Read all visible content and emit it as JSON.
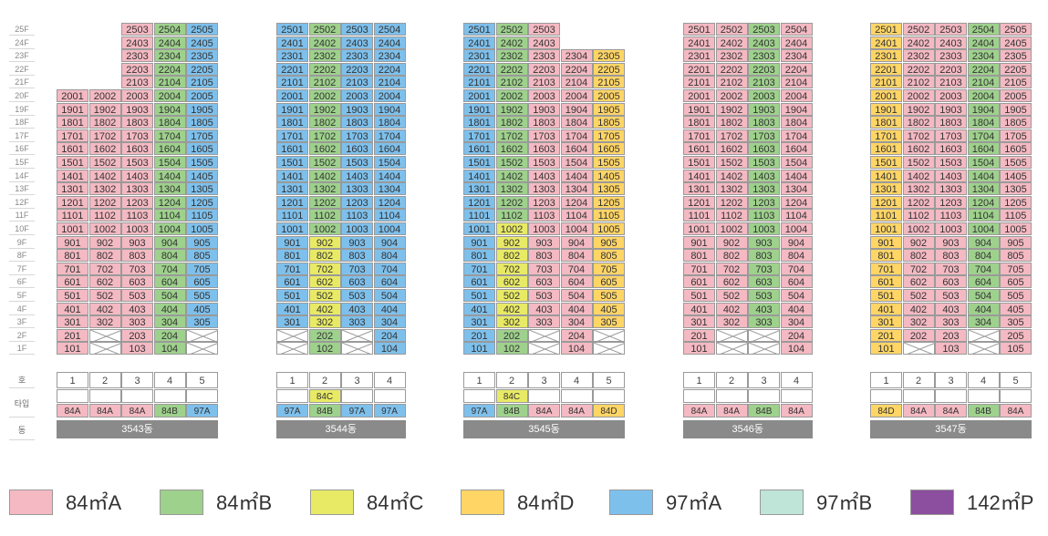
{
  "colors": {
    "84A": "#f4b9c2",
    "84B": "#9ed18c",
    "84C": "#e8ea66",
    "84D": "#ffd566",
    "97A": "#7ec0ec",
    "97B": "#bfe5d8",
    "142P": "#8c4e9e",
    "none": "#ffffff"
  },
  "side_labels": {
    "floors": [
      "25F",
      "24F",
      "23F",
      "22F",
      "21F",
      "20F",
      "19F",
      "18F",
      "17F",
      "16F",
      "15F",
      "14F",
      "13F",
      "12F",
      "11F",
      "10F",
      "9F",
      "8F",
      "7F",
      "6F",
      "5F",
      "4F",
      "3F",
      "2F",
      "1F"
    ],
    "ho": "호",
    "type": "타입",
    "dong": "동"
  },
  "buildings": [
    {
      "name": "3543동",
      "lines": [
        "1",
        "2",
        "3",
        "4",
        "5"
      ],
      "type_extra": [
        "",
        "",
        "",
        "",
        ""
      ],
      "types": [
        "84A",
        "84A",
        "84A",
        "84B",
        "97A"
      ],
      "line_types": [
        "84A",
        "84A",
        "84A",
        "84B",
        "97A"
      ],
      "top_floor": [
        20,
        20,
        25,
        25,
        25
      ],
      "missing": [
        [],
        [
          1,
          2
        ],
        [],
        [],
        [
          1,
          2
        ]
      ],
      "overrides": {}
    },
    {
      "name": "3544동",
      "lines": [
        "1",
        "2",
        "3",
        "4"
      ],
      "type_extra": [
        "",
        "84C",
        "",
        ""
      ],
      "types": [
        "97A",
        "84B",
        "97A",
        "97A"
      ],
      "line_types": [
        "97A",
        "84B",
        "97A",
        "97A"
      ],
      "top_floor": [
        25,
        25,
        25,
        25
      ],
      "missing": [
        [
          1,
          2
        ],
        [],
        [
          1,
          2
        ],
        []
      ],
      "overrides": {
        "1": {
          "3": "84C",
          "4": "84C",
          "5": "84C",
          "6": "84C",
          "7": "84C",
          "8": "84C",
          "9": "84C"
        }
      }
    },
    {
      "name": "3545동",
      "lines": [
        "1",
        "2",
        "3",
        "4",
        "5"
      ],
      "type_extra": [
        "",
        "84C",
        "",
        "",
        ""
      ],
      "types": [
        "97A",
        "84B",
        "84A",
        "84A",
        "84D"
      ],
      "line_types": [
        "97A",
        "84B",
        "84A",
        "84A",
        "84D"
      ],
      "top_floor": [
        25,
        25,
        25,
        23,
        23
      ],
      "missing": [
        [],
        [],
        [
          1,
          2
        ],
        [],
        [
          1,
          2
        ]
      ],
      "overrides": {
        "1": {
          "3": "84C",
          "4": "84C",
          "5": "84C",
          "6": "84C",
          "7": "84C",
          "8": "84C",
          "9": "84C",
          "10": "84C"
        }
      }
    },
    {
      "name": "3546동",
      "lines": [
        "1",
        "2",
        "3",
        "4"
      ],
      "type_extra": [
        "",
        "",
        "",
        ""
      ],
      "types": [
        "84A",
        "84A",
        "84B",
        "84A"
      ],
      "line_types": [
        "84A",
        "84A",
        "84B",
        "84A"
      ],
      "top_floor": [
        25,
        25,
        25,
        25
      ],
      "missing": [
        [],
        [
          1,
          2
        ],
        [
          1,
          2
        ],
        []
      ],
      "overrides": {}
    },
    {
      "name": "3547동",
      "lines": [
        "1",
        "2",
        "3",
        "4",
        "5"
      ],
      "type_extra": [
        "",
        "",
        "",
        "",
        ""
      ],
      "types": [
        "84D",
        "84A",
        "84A",
        "84B",
        "84A"
      ],
      "line_types": [
        "84D",
        "84A",
        "84A",
        "84B",
        "84A"
      ],
      "top_floor": [
        25,
        25,
        25,
        25,
        25
      ],
      "missing": [
        [],
        [
          1
        ],
        [],
        [
          1,
          2
        ],
        []
      ],
      "overrides": {}
    }
  ],
  "legend": [
    {
      "label": "84㎡A",
      "key": "84A"
    },
    {
      "label": "84㎡B",
      "key": "84B"
    },
    {
      "label": "84㎡C",
      "key": "84C"
    },
    {
      "label": "84㎡D",
      "key": "84D"
    },
    {
      "label": "97㎡A",
      "key": "97A"
    },
    {
      "label": "97㎡B",
      "key": "97B"
    },
    {
      "label": "142㎡P",
      "key": "142P"
    }
  ]
}
